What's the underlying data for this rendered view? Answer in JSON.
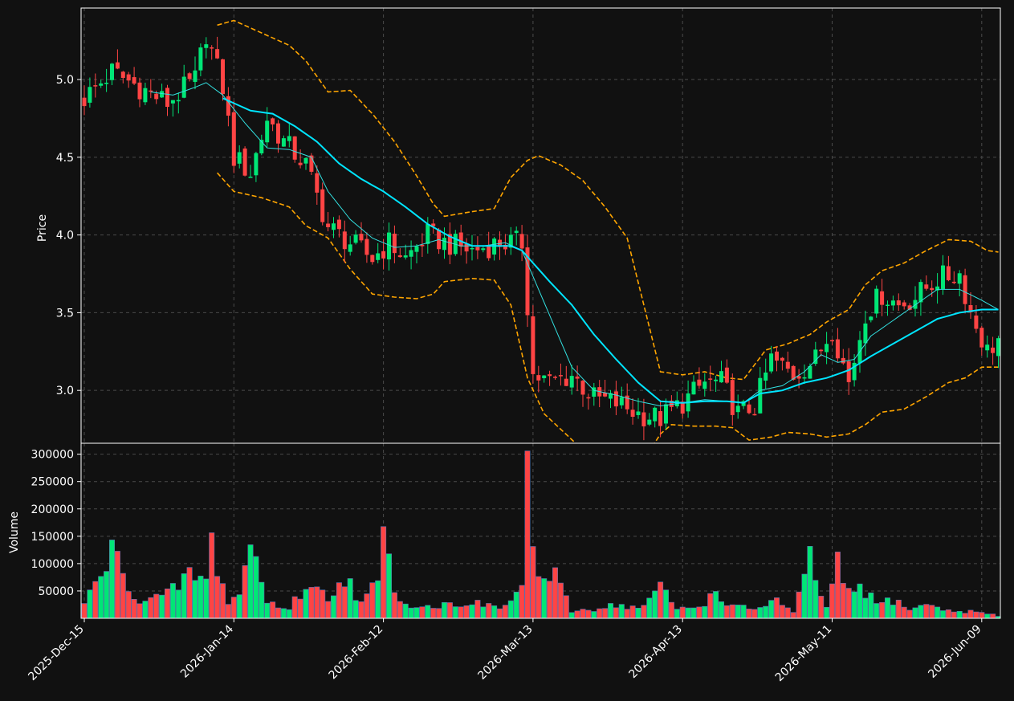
{
  "chart_data": {
    "type": "candlestick",
    "title": "",
    "colors": {
      "background": "#111111",
      "up": "#00e676",
      "down": "#ff4444",
      "ma_fast": "#33e0e0",
      "ma_slow": "#00e5ff",
      "bands": "#ffa500",
      "grid": "#4a4a4a"
    },
    "grid": true,
    "price_panel": {
      "ylabel": "Price",
      "ylim": [
        2.66,
        5.46
      ],
      "yticks": [
        3.0,
        3.5,
        4.0,
        4.5,
        5.0
      ],
      "ytick_labels": [
        "3.0",
        "3.5",
        "4.0",
        "4.5",
        "5.0"
      ]
    },
    "volume_panel": {
      "ylabel": "Volume",
      "ylim": [
        0,
        320000
      ],
      "yticks": [
        50000,
        100000,
        150000,
        200000,
        250000,
        300000
      ],
      "ytick_labels": [
        "50000",
        "100000",
        "150000",
        "200000",
        "250000",
        "300000"
      ]
    },
    "x_tick_labels": [
      {
        "label": "2025-Dec-15",
        "index": 0
      },
      {
        "label": "2026-Jan-14",
        "index": 27
      },
      {
        "label": "2026-Feb-12",
        "index": 54
      },
      {
        "label": "2026-Mar-13",
        "index": 81
      },
      {
        "label": "2026-Apr-13",
        "index": 108
      },
      {
        "label": "2026-May-11",
        "index": 135
      },
      {
        "label": "2026-Jun-09",
        "index": 162
      }
    ],
    "x_count": 166,
    "price_anchors": [
      [
        0,
        4.88
      ],
      [
        5,
        5.05
      ],
      [
        10,
        4.95
      ],
      [
        15,
        4.85
      ],
      [
        20,
        5.0
      ],
      [
        22,
        5.3
      ],
      [
        25,
        4.95
      ],
      [
        27,
        4.5
      ],
      [
        30,
        4.4
      ],
      [
        33,
        4.75
      ],
      [
        36,
        4.6
      ],
      [
        40,
        4.45
      ],
      [
        44,
        4.05
      ],
      [
        48,
        3.95
      ],
      [
        52,
        3.85
      ],
      [
        55,
        3.95
      ],
      [
        58,
        3.85
      ],
      [
        62,
        4.0
      ],
      [
        65,
        3.95
      ],
      [
        70,
        3.9
      ],
      [
        75,
        3.95
      ],
      [
        79,
        3.95
      ],
      [
        80,
        3.55
      ],
      [
        81,
        3.1
      ],
      [
        84,
        3.05
      ],
      [
        88,
        3.1
      ],
      [
        92,
        2.95
      ],
      [
        96,
        2.92
      ],
      [
        100,
        2.85
      ],
      [
        104,
        2.82
      ],
      [
        108,
        2.92
      ],
      [
        112,
        3.05
      ],
      [
        115,
        3.05
      ],
      [
        118,
        2.85
      ],
      [
        121,
        2.9
      ],
      [
        124,
        3.2
      ],
      [
        128,
        3.1
      ],
      [
        132,
        3.2
      ],
      [
        135,
        3.4
      ],
      [
        138,
        3.05
      ],
      [
        141,
        3.5
      ],
      [
        144,
        3.62
      ],
      [
        147,
        3.55
      ],
      [
        150,
        3.6
      ],
      [
        154,
        3.72
      ],
      [
        158,
        3.75
      ],
      [
        160,
        3.5
      ],
      [
        163,
        3.25
      ],
      [
        165,
        3.33
      ]
    ],
    "volume_anchors": [
      [
        0,
        30000
      ],
      [
        5,
        140000
      ],
      [
        10,
        35000
      ],
      [
        15,
        50000
      ],
      [
        19,
        95000
      ],
      [
        22,
        80000
      ],
      [
        23,
        155000
      ],
      [
        26,
        35000
      ],
      [
        28,
        50000
      ],
      [
        30,
        168000
      ],
      [
        33,
        35000
      ],
      [
        37,
        20000
      ],
      [
        40,
        72000
      ],
      [
        44,
        45000
      ],
      [
        47,
        95000
      ],
      [
        50,
        30000
      ],
      [
        53,
        80000
      ],
      [
        54,
        162000
      ],
      [
        57,
        35000
      ],
      [
        62,
        25000
      ],
      [
        66,
        30000
      ],
      [
        70,
        35000
      ],
      [
        73,
        25000
      ],
      [
        76,
        25000
      ],
      [
        79,
        70000
      ],
      [
        80,
        295000
      ],
      [
        82,
        85000
      ],
      [
        85,
        85000
      ],
      [
        88,
        15000
      ],
      [
        92,
        20000
      ],
      [
        96,
        30000
      ],
      [
        100,
        20000
      ],
      [
        104,
        65000
      ],
      [
        107,
        20000
      ],
      [
        111,
        25000
      ],
      [
        114,
        55000
      ],
      [
        117,
        25000
      ],
      [
        121,
        20000
      ],
      [
        125,
        40000
      ],
      [
        128,
        10000
      ],
      [
        131,
        125000
      ],
      [
        134,
        20000
      ],
      [
        136,
        115000
      ],
      [
        138,
        50000
      ],
      [
        140,
        70000
      ],
      [
        143,
        30000
      ],
      [
        146,
        40000
      ],
      [
        149,
        20000
      ],
      [
        153,
        30000
      ],
      [
        156,
        15000
      ],
      [
        160,
        15000
      ],
      [
        163,
        10000
      ],
      [
        165,
        5000
      ]
    ],
    "bollinger_upper_anchors": [
      [
        24,
        5.35
      ],
      [
        27,
        5.38
      ],
      [
        32,
        5.3
      ],
      [
        37,
        5.22
      ],
      [
        40,
        5.12
      ],
      [
        44,
        4.92
      ],
      [
        48,
        4.93
      ],
      [
        52,
        4.78
      ],
      [
        56,
        4.6
      ],
      [
        60,
        4.38
      ],
      [
        63,
        4.2
      ],
      [
        65,
        4.12
      ],
      [
        70,
        4.15
      ],
      [
        74,
        4.17
      ],
      [
        77,
        4.37
      ],
      [
        80,
        4.48
      ],
      [
        82,
        4.51
      ],
      [
        86,
        4.45
      ],
      [
        90,
        4.35
      ],
      [
        94,
        4.18
      ],
      [
        98,
        3.98
      ],
      [
        101,
        3.55
      ],
      [
        104,
        3.12
      ],
      [
        108,
        3.1
      ],
      [
        112,
        3.12
      ],
      [
        116,
        3.08
      ],
      [
        119,
        3.07
      ],
      [
        123,
        3.26
      ],
      [
        127,
        3.3
      ],
      [
        131,
        3.36
      ],
      [
        134,
        3.44
      ],
      [
        138,
        3.52
      ],
      [
        141,
        3.68
      ],
      [
        144,
        3.77
      ],
      [
        148,
        3.82
      ],
      [
        152,
        3.9
      ],
      [
        156,
        3.97
      ],
      [
        160,
        3.96
      ],
      [
        163,
        3.9
      ],
      [
        165,
        3.89
      ]
    ],
    "bollinger_lower_anchors": [
      [
        24,
        4.4
      ],
      [
        27,
        4.28
      ],
      [
        32,
        4.24
      ],
      [
        37,
        4.18
      ],
      [
        40,
        4.06
      ],
      [
        44,
        3.98
      ],
      [
        48,
        3.78
      ],
      [
        52,
        3.62
      ],
      [
        56,
        3.6
      ],
      [
        60,
        3.59
      ],
      [
        63,
        3.62
      ],
      [
        65,
        3.7
      ],
      [
        70,
        3.72
      ],
      [
        74,
        3.71
      ],
      [
        77,
        3.55
      ],
      [
        80,
        3.08
      ],
      [
        83,
        2.85
      ],
      [
        86,
        2.75
      ],
      [
        89,
        2.65
      ],
      [
        93,
        2.5
      ],
      [
        97,
        2.45
      ],
      [
        101,
        2.55
      ],
      [
        104,
        2.72
      ],
      [
        106,
        2.78
      ],
      [
        110,
        2.77
      ],
      [
        114,
        2.77
      ],
      [
        117,
        2.76
      ],
      [
        120,
        2.68
      ],
      [
        124,
        2.7
      ],
      [
        127,
        2.73
      ],
      [
        131,
        2.72
      ],
      [
        134,
        2.7
      ],
      [
        138,
        2.72
      ],
      [
        141,
        2.78
      ],
      [
        144,
        2.86
      ],
      [
        148,
        2.88
      ],
      [
        152,
        2.96
      ],
      [
        156,
        3.05
      ],
      [
        159,
        3.08
      ],
      [
        162,
        3.15
      ],
      [
        165,
        3.15
      ]
    ],
    "ma_slow_anchors": [
      [
        25,
        4.88
      ],
      [
        30,
        4.8
      ],
      [
        34,
        4.78
      ],
      [
        38,
        4.7
      ],
      [
        42,
        4.6
      ],
      [
        46,
        4.46
      ],
      [
        50,
        4.36
      ],
      [
        54,
        4.28
      ],
      [
        58,
        4.18
      ],
      [
        62,
        4.07
      ],
      [
        66,
        3.99
      ],
      [
        70,
        3.93
      ],
      [
        74,
        3.93
      ],
      [
        77,
        3.93
      ],
      [
        79,
        3.9
      ],
      [
        81,
        3.82
      ],
      [
        84,
        3.7
      ],
      [
        88,
        3.55
      ],
      [
        92,
        3.36
      ],
      [
        96,
        3.2
      ],
      [
        100,
        3.05
      ],
      [
        104,
        2.93
      ],
      [
        108,
        2.92
      ],
      [
        112,
        2.93
      ],
      [
        116,
        2.93
      ],
      [
        119,
        2.92
      ],
      [
        122,
        2.98
      ],
      [
        126,
        3.0
      ],
      [
        130,
        3.05
      ],
      [
        134,
        3.08
      ],
      [
        138,
        3.13
      ],
      [
        142,
        3.22
      ],
      [
        146,
        3.3
      ],
      [
        150,
        3.38
      ],
      [
        154,
        3.46
      ],
      [
        158,
        3.5
      ],
      [
        162,
        3.52
      ],
      [
        165,
        3.52
      ]
    ],
    "ma_fast_anchors": [
      [
        12,
        4.92
      ],
      [
        16,
        4.9
      ],
      [
        20,
        4.95
      ],
      [
        22,
        4.98
      ],
      [
        25,
        4.9
      ],
      [
        29,
        4.72
      ],
      [
        33,
        4.56
      ],
      [
        37,
        4.55
      ],
      [
        41,
        4.5
      ],
      [
        44,
        4.28
      ],
      [
        48,
        4.1
      ],
      [
        52,
        3.98
      ],
      [
        56,
        3.92
      ],
      [
        60,
        3.93
      ],
      [
        64,
        3.97
      ],
      [
        68,
        3.93
      ],
      [
        72,
        3.93
      ],
      [
        76,
        3.95
      ],
      [
        79,
        3.9
      ],
      [
        82,
        3.65
      ],
      [
        85,
        3.4
      ],
      [
        88,
        3.15
      ],
      [
        92,
        3.0
      ],
      [
        96,
        2.97
      ],
      [
        100,
        2.93
      ],
      [
        104,
        2.9
      ],
      [
        108,
        2.92
      ],
      [
        112,
        2.94
      ],
      [
        116,
        2.93
      ],
      [
        119,
        2.92
      ],
      [
        122,
        3.0
      ],
      [
        126,
        3.03
      ],
      [
        130,
        3.12
      ],
      [
        133,
        3.23
      ],
      [
        136,
        3.18
      ],
      [
        139,
        3.2
      ],
      [
        142,
        3.35
      ],
      [
        146,
        3.45
      ],
      [
        150,
        3.55
      ],
      [
        154,
        3.65
      ],
      [
        158,
        3.65
      ],
      [
        162,
        3.58
      ],
      [
        165,
        3.52
      ]
    ]
  }
}
